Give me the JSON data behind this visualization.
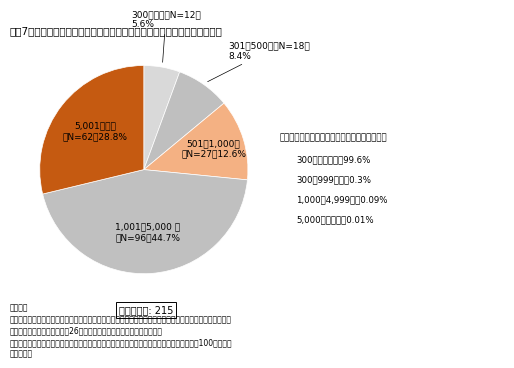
{
  "title": "図表7　企業規模別の「えるぼし」認定企業数と認定企業総数に占める割合",
  "segments": [
    {
      "label": "300人以下\n（N=12）\n5.6%",
      "value": 5.6,
      "color": "#d9d9d9",
      "label_short": "300人以下（N=12）\n5.6%"
    },
    {
      "label": "301〜500人\n（N=18）\n8.4%",
      "value": 8.4,
      "color": "#bfbfbf",
      "label_short": "301〜500人（N=18）\n8.4%"
    },
    {
      "label": "501〜1,000人\n（N=27）12.6%",
      "value": 12.6,
      "color": "#f4b183",
      "label_short": "501〜1,000人\n（N=27）12.6%"
    },
    {
      "label": "1,001〜5,000人\n（N=96）44.7%",
      "value": 44.7,
      "color": "#c0c0c0",
      "label_short": "1,001〜5,000 人\n（N=96）44.7%"
    },
    {
      "label": "5,001人以上\n（N=62）28.8%",
      "value": 28.8,
      "color": "#c55a11",
      "label_short": "5,001人以上\n（N=62）28.8%"
    }
  ],
  "total_label": "認定企業数: 215",
  "ref_box_title": "【参考】総企業数に占める規模別企業数の割合",
  "ref_box_lines": [
    "300人未満　　：99.6%",
    "300〜999人　：0.3%",
    "1,000〜4,999人：0.09%",
    "5,000人以上　：0.01%"
  ],
  "footer_lines": [
    "（備考）",
    "１．厚生労働省ホームページ掲載資料を基に内閣府男女共同参画局にて作成。総企業数に占める規模別企業",
    "　　数の割合は総務省「平成26年経済センサスー基礎調査」より作成。",
    "２．認定企業総数に占める割合は、小数点以下第２位を四捨五入しているため、合計しても100とはなら",
    "　　ない。"
  ],
  "background_color": "#ffffff"
}
